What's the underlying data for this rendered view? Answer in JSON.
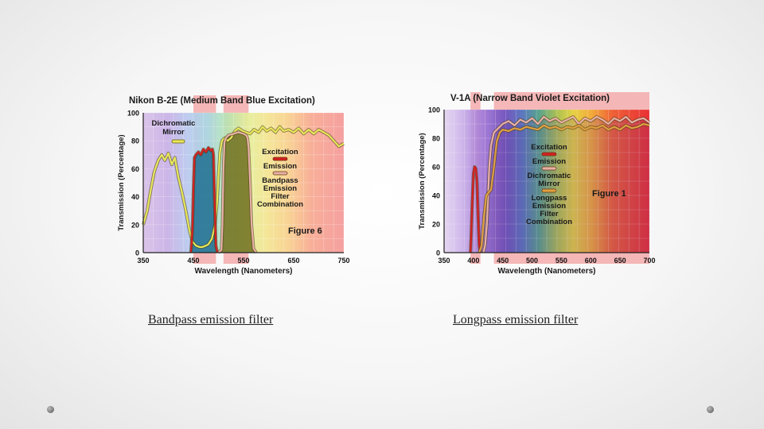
{
  "chart_data": [
    {
      "type": "line",
      "title": "Nikon B-2E (Medium Band Blue Excitation)",
      "xlabel": "Wavelength (Nanometers)",
      "ylabel": "Transmission (Percentage)",
      "xlim": [
        350,
        750
      ],
      "ylim": [
        0,
        100
      ],
      "xticks": [
        "350",
        "450",
        "550",
        "650",
        "750"
      ],
      "yticks": [
        "0",
        "20",
        "40",
        "60",
        "80",
        "100"
      ],
      "figure_label": "Figure 6",
      "highlight_bands": [
        [
          450,
          495
        ],
        [
          510,
          560
        ]
      ],
      "series": [
        {
          "name": "Dichromatic Mirror",
          "color": "#e8e85a",
          "x": [
            350,
            358,
            365,
            372,
            380,
            387,
            393,
            400,
            407,
            413,
            420,
            428,
            435,
            442,
            448,
            455,
            462,
            468,
            475,
            480,
            487,
            493,
            497,
            500,
            503,
            507,
            512,
            518,
            525,
            533,
            540,
            548,
            555,
            563,
            571,
            580,
            588,
            596,
            605,
            614,
            622,
            630,
            640,
            650,
            660,
            670,
            680,
            690,
            700,
            710,
            720,
            730,
            740,
            750
          ],
          "y": [
            20,
            30,
            45,
            58,
            66,
            70,
            66,
            71,
            63,
            68,
            54,
            42,
            30,
            16,
            8,
            5,
            4,
            4,
            5,
            6,
            10,
            20,
            35,
            55,
            72,
            80,
            82,
            80,
            82,
            87,
            89,
            87,
            86,
            85,
            88,
            86,
            90,
            87,
            89,
            86,
            90,
            87,
            88,
            86,
            89,
            85,
            88,
            85,
            88,
            86,
            84,
            80,
            76,
            78
          ]
        },
        {
          "name": "Excitation",
          "color": "#d42020",
          "x": [
            445,
            448,
            450,
            452,
            455,
            460,
            465,
            470,
            475,
            480,
            485,
            488,
            490,
            492,
            495,
            498
          ],
          "y": [
            0,
            15,
            45,
            68,
            70,
            72,
            70,
            74,
            72,
            75,
            73,
            74,
            70,
            40,
            5,
            0
          ]
        },
        {
          "name": "Emission",
          "color": "#e8b0a8",
          "x": [
            500,
            506,
            508,
            510,
            512,
            515,
            520,
            530,
            540,
            550,
            555,
            558,
            560,
            563,
            566,
            570,
            575
          ],
          "y": [
            0,
            2,
            20,
            60,
            79,
            82,
            84,
            85,
            86,
            85,
            84,
            82,
            75,
            50,
            20,
            3,
            0
          ]
        }
      ],
      "legend": [
        {
          "label": "Dichromatic Mirror",
          "lines": [
            "Dichromatic",
            "Mirror"
          ],
          "color": "#e8e85a"
        },
        {
          "label": "Excitation",
          "lines": [
            "Excitation"
          ],
          "color": "#d42020"
        },
        {
          "label": "Emission",
          "lines": [
            "Emission"
          ],
          "color": "#e8b0a8"
        },
        {
          "label": "Bandpass Emission Filter Combination",
          "lines": [
            "Bandpass",
            "Emission",
            "Filter",
            "Combination"
          ],
          "color": null
        }
      ]
    },
    {
      "type": "line",
      "title": "V-1A (Narrow Band Violet Excitation)",
      "xlabel": "Wavelength (Nanometers)",
      "ylabel": "Transmission (Percentage)",
      "xlim": [
        350,
        700
      ],
      "ylim": [
        0,
        100
      ],
      "xticks": [
        "350",
        "400",
        "450",
        "500",
        "550",
        "600",
        "650",
        "700"
      ],
      "yticks": [
        "0",
        "20",
        "40",
        "60",
        "80",
        "100"
      ],
      "figure_label": "Figure 1",
      "highlight_bands": [
        [
          395,
          412
        ],
        [
          435,
          700
        ]
      ],
      "series": [
        {
          "name": "Excitation",
          "color": "#d42020",
          "x": [
            395,
            396,
            398,
            400,
            402,
            404,
            406,
            408,
            410,
            412
          ],
          "y": [
            0,
            10,
            35,
            55,
            60,
            59,
            50,
            25,
            5,
            0
          ]
        },
        {
          "name": "Emission",
          "color": "#e8b0a8",
          "x": [
            417,
            420,
            423,
            425,
            427,
            430,
            435,
            440,
            445,
            450,
            460,
            470,
            480,
            490,
            500,
            510,
            520,
            530,
            540,
            550,
            560,
            570,
            580,
            590,
            600,
            610,
            620,
            630,
            640,
            650,
            660,
            670,
            680,
            690,
            700
          ],
          "y": [
            0,
            5,
            20,
            40,
            60,
            75,
            84,
            86,
            88,
            90,
            92,
            89,
            93,
            91,
            94,
            90,
            95,
            92,
            94,
            91,
            93,
            95,
            90,
            94,
            92,
            95,
            93,
            90,
            94,
            92,
            95,
            91,
            93,
            94,
            91
          ]
        },
        {
          "name": "Dichromatic Mirror",
          "color": "#e0a040",
          "x": [
            410,
            414,
            418,
            422,
            426,
            430,
            435,
            440,
            445,
            450,
            460,
            470,
            480,
            490,
            500,
            510,
            520,
            530,
            540,
            550,
            560,
            570,
            580,
            590,
            600,
            610,
            620,
            630,
            640,
            650,
            660,
            670,
            680,
            690,
            700
          ],
          "y": [
            0,
            5,
            25,
            40,
            42,
            44,
            60,
            78,
            84,
            86,
            85,
            87,
            86,
            88,
            87,
            86,
            89,
            87,
            88,
            86,
            88,
            87,
            89,
            86,
            88,
            87,
            89,
            86,
            88,
            86,
            89,
            87,
            88,
            90,
            89
          ]
        }
      ],
      "legend": [
        {
          "label": "Excitation",
          "lines": [
            "Excitation"
          ],
          "color": "#d42020"
        },
        {
          "label": "Emission",
          "lines": [
            "Emission"
          ],
          "color": "#e8b0a8"
        },
        {
          "label": "Dichromatic Mirror",
          "lines": [
            "Dichromatic",
            "Mirror"
          ],
          "color": "#e0a040"
        },
        {
          "label": "Longpass Emission Filter Combination",
          "lines": [
            "Longpass",
            "Emission",
            "Filter",
            "Combination"
          ],
          "color": null
        }
      ]
    }
  ],
  "captions": {
    "left": "Bandpass emission filter",
    "right": "Longpass emission filter"
  }
}
